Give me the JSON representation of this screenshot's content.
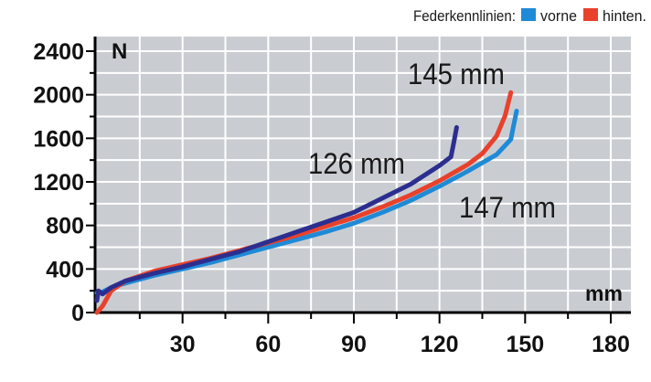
{
  "legend": {
    "title": "Federkennlinien:",
    "items": [
      {
        "label": "vorne",
        "color": "#1f8ad6"
      },
      {
        "label": "hinten.",
        "color": "#e8412c"
      }
    ]
  },
  "colors": {
    "plot_bg": "#c9cdd2",
    "grid": "#ffffff",
    "axis": "#000000"
  },
  "chart_data": {
    "type": "line",
    "xlabel": "mm",
    "ylabel": "N",
    "xlim": [
      0,
      180
    ],
    "ylim": [
      0,
      2400
    ],
    "x_ticks": [
      30,
      60,
      90,
      120,
      150,
      180
    ],
    "y_ticks": [
      0,
      400,
      800,
      1200,
      1600,
      2000,
      2400
    ],
    "grid": true,
    "legend_position": "top-right",
    "series": [
      {
        "label": "126 mm",
        "color": "#2c2e8f",
        "x": [
          0,
          0.5,
          2,
          5,
          10,
          20,
          30,
          40,
          50,
          60,
          70,
          80,
          90,
          100,
          110,
          120,
          124,
          125,
          126
        ],
        "y": [
          110,
          200,
          170,
          230,
          290,
          360,
          420,
          490,
          560,
          650,
          740,
          830,
          920,
          1050,
          1180,
          1350,
          1430,
          1560,
          1700
        ]
      },
      {
        "label": "145 mm",
        "color": "#e8412c",
        "x": [
          0,
          2,
          5,
          10,
          20,
          30,
          40,
          50,
          60,
          70,
          80,
          90,
          100,
          110,
          120,
          130,
          135,
          140,
          143,
          145
        ],
        "y": [
          0,
          60,
          200,
          290,
          380,
          440,
          500,
          570,
          640,
          710,
          790,
          870,
          970,
          1080,
          1210,
          1360,
          1460,
          1620,
          1810,
          2020
        ]
      },
      {
        "label": "147 mm",
        "color": "#1f8ad6",
        "x": [
          0,
          2,
          5,
          10,
          20,
          30,
          40,
          50,
          60,
          70,
          80,
          90,
          100,
          110,
          120,
          130,
          140,
          145,
          146,
          147
        ],
        "y": [
          180,
          190,
          230,
          270,
          340,
          400,
          460,
          530,
          600,
          670,
          740,
          820,
          920,
          1030,
          1160,
          1300,
          1450,
          1590,
          1720,
          1850
        ]
      }
    ]
  }
}
